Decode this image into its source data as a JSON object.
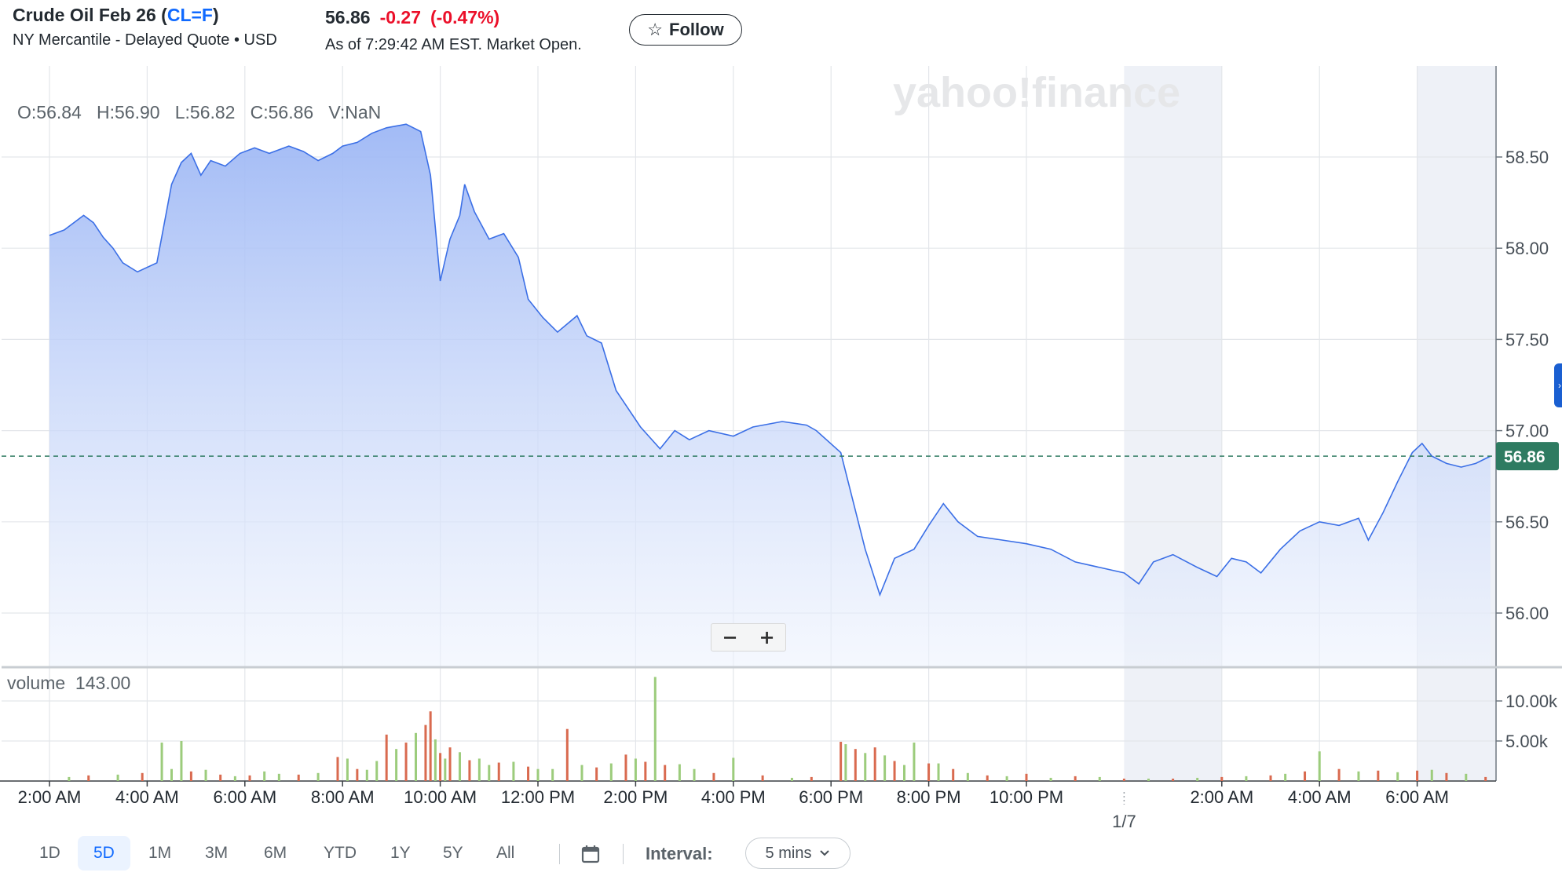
{
  "header": {
    "name": "Crude Oil Feb 26 (",
    "symbol": "CL=F",
    "close_paren": ")",
    "exchange": "NY Mercantile - Delayed Quote • USD",
    "price": "56.86",
    "change": "-0.27",
    "change_pct": "(-0.47%)",
    "as_of": "As of 7:29:42 AM EST. Market Open.",
    "follow_label": "Follow",
    "follow_icon": "star-icon"
  },
  "legend": {
    "ohlcv": "O:56.84   H:56.90   L:56.82   C:56.86   V:NaN",
    "volume": "volume  143.00",
    "watermark": "yahoo!finance",
    "current_price_tag": "56.86"
  },
  "colors": {
    "line": "#3b6fe6",
    "area_top": "#9db7f5",
    "area_bottom": "#eef3fd",
    "up_volume": "#9ccc7c",
    "down_volume": "#d96a4f",
    "price_tag": "#2e7b61",
    "accent": "#0f69ff",
    "negative": "#eb0f29"
  },
  "chart_data": {
    "type": "line",
    "title": "Crude Oil Feb 26 (CL=F)",
    "xlabel": "",
    "ylabel": "",
    "ylim": [
      55.7,
      58.95
    ],
    "yticks": [
      "58.50",
      "58.00",
      "57.50",
      "57.00",
      "56.50",
      "56.00"
    ],
    "xticks": [
      "2:00 AM",
      "4:00 AM",
      "6:00 AM",
      "8:00 AM",
      "10:00 AM",
      "12:00 PM",
      "2:00 PM",
      "4:00 PM",
      "6:00 PM",
      "8:00 PM",
      "10:00 PM",
      "1/7",
      "2:00 AM",
      "4:00 AM",
      "6:00 AM"
    ],
    "x_hours": [
      2,
      4,
      6,
      8,
      10,
      12,
      14,
      16,
      18,
      20,
      22,
      24,
      26,
      28,
      30
    ],
    "xlim_hours": [
      2.0,
      32.2
    ],
    "points": [
      [
        2.0,
        58.07
      ],
      [
        2.3,
        58.1
      ],
      [
        2.7,
        58.18
      ],
      [
        2.9,
        58.14
      ],
      [
        3.1,
        58.06
      ],
      [
        3.3,
        58.0
      ],
      [
        3.5,
        57.92
      ],
      [
        3.8,
        57.87
      ],
      [
        4.2,
        57.92
      ],
      [
        4.5,
        58.35
      ],
      [
        4.7,
        58.47
      ],
      [
        4.9,
        58.52
      ],
      [
        5.1,
        58.4
      ],
      [
        5.3,
        58.48
      ],
      [
        5.6,
        58.45
      ],
      [
        5.9,
        58.52
      ],
      [
        6.2,
        58.55
      ],
      [
        6.5,
        58.52
      ],
      [
        6.9,
        58.56
      ],
      [
        7.2,
        58.53
      ],
      [
        7.5,
        58.48
      ],
      [
        7.8,
        58.52
      ],
      [
        8.0,
        58.56
      ],
      [
        8.3,
        58.58
      ],
      [
        8.6,
        58.63
      ],
      [
        8.9,
        58.66
      ],
      [
        9.3,
        58.68
      ],
      [
        9.6,
        58.64
      ],
      [
        9.8,
        58.4
      ],
      [
        10.0,
        57.82
      ],
      [
        10.2,
        58.05
      ],
      [
        10.4,
        58.18
      ],
      [
        10.5,
        58.35
      ],
      [
        10.7,
        58.2
      ],
      [
        11.0,
        58.05
      ],
      [
        11.3,
        58.08
      ],
      [
        11.6,
        57.95
      ],
      [
        11.8,
        57.72
      ],
      [
        12.1,
        57.62
      ],
      [
        12.4,
        57.54
      ],
      [
        12.8,
        57.63
      ],
      [
        13.0,
        57.52
      ],
      [
        13.3,
        57.48
      ],
      [
        13.6,
        57.22
      ],
      [
        14.1,
        57.02
      ],
      [
        14.5,
        56.9
      ],
      [
        14.8,
        57.0
      ],
      [
        15.1,
        56.95
      ],
      [
        15.5,
        57.0
      ],
      [
        16.0,
        56.97
      ],
      [
        16.4,
        57.02
      ],
      [
        17.0,
        57.05
      ],
      [
        17.5,
        57.03
      ],
      [
        17.7,
        57.0
      ],
      [
        18.2,
        56.88
      ],
      [
        18.7,
        56.35
      ],
      [
        19.0,
        56.1
      ],
      [
        19.3,
        56.3
      ],
      [
        19.7,
        56.35
      ],
      [
        20.0,
        56.48
      ],
      [
        20.3,
        56.6
      ],
      [
        20.6,
        56.5
      ],
      [
        21.0,
        56.42
      ],
      [
        21.5,
        56.4
      ],
      [
        22.0,
        56.38
      ],
      [
        22.5,
        56.35
      ],
      [
        23.0,
        56.28
      ],
      [
        23.5,
        56.25
      ],
      [
        24.0,
        56.22
      ],
      [
        24.3,
        56.16
      ],
      [
        24.6,
        56.28
      ],
      [
        25.0,
        56.32
      ],
      [
        25.5,
        56.25
      ],
      [
        25.9,
        56.2
      ],
      [
        26.2,
        56.3
      ],
      [
        26.5,
        56.28
      ],
      [
        26.8,
        56.22
      ],
      [
        27.2,
        56.35
      ],
      [
        27.6,
        56.45
      ],
      [
        28.0,
        56.5
      ],
      [
        28.4,
        56.48
      ],
      [
        28.8,
        56.52
      ],
      [
        29.0,
        56.4
      ],
      [
        29.3,
        56.55
      ],
      [
        29.6,
        56.72
      ],
      [
        29.9,
        56.88
      ],
      [
        30.1,
        56.93
      ],
      [
        30.3,
        56.86
      ],
      [
        30.6,
        56.82
      ],
      [
        30.9,
        56.8
      ],
      [
        31.2,
        56.82
      ],
      [
        31.5,
        56.86
      ]
    ],
    "current_value": 56.86,
    "shaded_regions": [
      [
        24.0,
        26.0
      ],
      [
        30.0,
        31.6
      ]
    ],
    "grid": true,
    "volume": {
      "yticks": [
        "10.00k",
        "5.00k"
      ],
      "ylim": [
        0,
        13500
      ],
      "x_hours": [
        2.4,
        2.8,
        3.4,
        3.9,
        4.3,
        4.5,
        4.7,
        4.9,
        5.2,
        5.5,
        5.8,
        6.1,
        6.4,
        6.7,
        7.1,
        7.5,
        7.9,
        8.1,
        8.3,
        8.5,
        8.7,
        8.9,
        9.1,
        9.3,
        9.5,
        9.7,
        9.8,
        9.9,
        10.0,
        10.1,
        10.2,
        10.4,
        10.6,
        10.8,
        11.0,
        11.2,
        11.5,
        11.8,
        12.0,
        12.3,
        12.6,
        12.9,
        13.2,
        13.5,
        13.8,
        14.0,
        14.2,
        14.4,
        14.6,
        14.9,
        15.2,
        15.6,
        16.0,
        16.6,
        17.2,
        17.6,
        18.2,
        18.3,
        18.5,
        18.7,
        18.9,
        19.1,
        19.3,
        19.5,
        19.7,
        20.0,
        20.2,
        20.5,
        20.8,
        21.2,
        21.6,
        22.0,
        22.5,
        23.0,
        23.5,
        24.0,
        24.5,
        25.0,
        25.5,
        26.0,
        26.5,
        27.0,
        27.3,
        27.7,
        28.0,
        28.4,
        28.8,
        29.2,
        29.6,
        30.0,
        30.3,
        30.6,
        31.0,
        31.4
      ],
      "values": [
        500,
        700,
        800,
        1000,
        4800,
        1500,
        5000,
        1200,
        1400,
        800,
        600,
        700,
        1200,
        900,
        800,
        1000,
        3000,
        2800,
        1500,
        1400,
        2500,
        5800,
        4000,
        4800,
        6000,
        7000,
        8700,
        5200,
        3500,
        2800,
        4200,
        3600,
        2600,
        2800,
        2000,
        2300,
        2400,
        1800,
        1500,
        1500,
        6500,
        2000,
        1700,
        2200,
        3300,
        2800,
        2400,
        13000,
        2000,
        2100,
        1500,
        1000,
        2900,
        700,
        400,
        500,
        4900,
        4600,
        4000,
        3500,
        4200,
        3200,
        2500,
        2000,
        4800,
        2200,
        2200,
        1500,
        1000,
        700,
        600,
        900,
        400,
        600,
        500,
        300,
        300,
        300,
        400,
        500,
        600,
        700,
        900,
        1200,
        3700,
        1500,
        1200,
        1300,
        1100,
        1300,
        1400,
        1000,
        900,
        500
      ],
      "up": [
        true,
        false,
        true,
        false,
        true,
        true,
        true,
        false,
        true,
        false,
        true,
        false,
        true,
        true,
        false,
        true,
        false,
        true,
        false,
        true,
        true,
        false,
        true,
        false,
        true,
        false,
        false,
        true,
        false,
        true,
        false,
        true,
        false,
        true,
        true,
        false,
        true,
        false,
        true,
        true,
        false,
        true,
        false,
        true,
        false,
        true,
        false,
        true,
        false,
        true,
        true,
        false,
        true,
        false,
        true,
        false,
        false,
        true,
        false,
        true,
        false,
        true,
        false,
        true,
        true,
        false,
        true,
        false,
        true,
        false,
        true,
        false,
        true,
        false,
        true,
        false,
        true,
        false,
        true,
        false,
        true,
        false,
        true,
        false,
        true,
        false,
        true,
        false,
        true,
        false,
        true,
        false,
        true,
        false
      ]
    }
  },
  "controls": {
    "zoom_out": "−",
    "zoom_in": "+",
    "ranges": [
      "1D",
      "5D",
      "1M",
      "3M",
      "6M",
      "YTD",
      "1Y",
      "5Y",
      "All"
    ],
    "active_range": "5D",
    "calendar_icon": "calendar-icon",
    "interval_label": "Interval:",
    "interval_value": "5 mins",
    "chevron_icon": "chevron-down-icon"
  }
}
